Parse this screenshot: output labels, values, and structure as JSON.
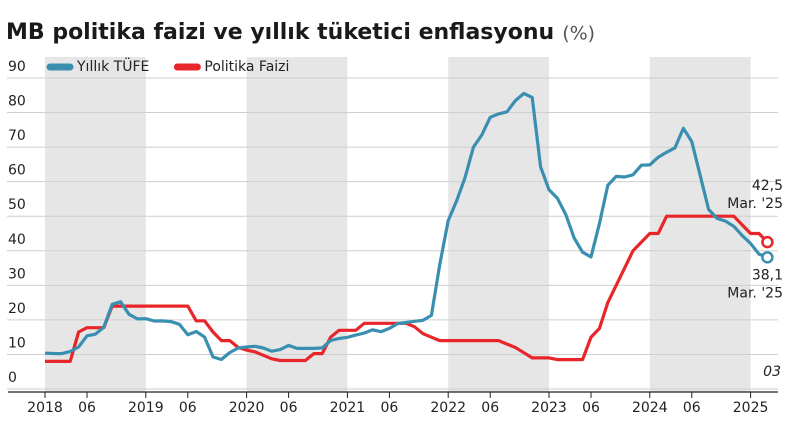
{
  "chart_data": {
    "type": "line",
    "title": "MB politika faizi ve yıllık tüketici enflasyonu",
    "unit": "(%)",
    "source_note": "03",
    "categories": [
      "2018",
      null,
      null,
      null,
      null,
      "06",
      null,
      null,
      null,
      null,
      null,
      null,
      "2019",
      null,
      null,
      null,
      null,
      "06",
      null,
      null,
      null,
      null,
      null,
      null,
      "2020",
      null,
      null,
      null,
      null,
      "06",
      null,
      null,
      null,
      null,
      null,
      null,
      "2021",
      null,
      null,
      null,
      null,
      "06",
      null,
      null,
      null,
      null,
      null,
      null,
      "2022",
      null,
      null,
      null,
      null,
      "06",
      null,
      null,
      null,
      null,
      null,
      null,
      "2023",
      null,
      null,
      null,
      null,
      "06",
      null,
      null,
      null,
      null,
      null,
      null,
      "2024",
      null,
      null,
      null,
      null,
      "06",
      null,
      null,
      null,
      null,
      null,
      null,
      "2025",
      null,
      null
    ],
    "series": [
      {
        "name": "Yıllık TÜFE",
        "color": "#3a8fb0",
        "end_note": "Mar. '25",
        "values": [
          10.35,
          10.26,
          10.23,
          10.85,
          12.15,
          15.39,
          15.85,
          17.9,
          24.52,
          25.24,
          21.62,
          20.3,
          20.35,
          19.67,
          19.71,
          19.5,
          18.71,
          15.72,
          16.65,
          15.01,
          9.26,
          8.55,
          10.56,
          11.84,
          12.15,
          12.37,
          11.86,
          10.94,
          11.39,
          12.62,
          11.76,
          11.77,
          11.75,
          11.89,
          14.03,
          14.6,
          14.97,
          15.61,
          16.19,
          17.14,
          16.59,
          17.53,
          18.95,
          19.25,
          19.58,
          19.89,
          21.31,
          36.08,
          48.69,
          54.44,
          61.14,
          69.97,
          73.5,
          78.62,
          79.6,
          80.21,
          83.45,
          85.51,
          84.39,
          64.27,
          57.68,
          55.18,
          50.51,
          43.68,
          39.59,
          38.21,
          47.83,
          58.94,
          61.53,
          61.36,
          61.98,
          64.77,
          64.86,
          67.07,
          68.5,
          69.8,
          75.45,
          71.6,
          61.78,
          51.97,
          49.38,
          48.58,
          47.09,
          44.38,
          42.12,
          39.05,
          38.1
        ],
        "value_labels": [
          null,
          null,
          null,
          null,
          null,
          null,
          null,
          null,
          null,
          null,
          null,
          null,
          null,
          null,
          null,
          null,
          null,
          null,
          null,
          null,
          null,
          null,
          null,
          null,
          null,
          null,
          null,
          null,
          null,
          null,
          null,
          null,
          null,
          null,
          null,
          null,
          null,
          null,
          null,
          null,
          null,
          null,
          null,
          null,
          null,
          null,
          null,
          null,
          null,
          null,
          null,
          null,
          null,
          null,
          null,
          null,
          null,
          null,
          null,
          null,
          null,
          null,
          null,
          null,
          null,
          null,
          null,
          null,
          null,
          null,
          null,
          null,
          null,
          null,
          null,
          null,
          null,
          null,
          null,
          null,
          null,
          null,
          null,
          null,
          null,
          null,
          "38,1"
        ]
      },
      {
        "name": "Politika Faizi",
        "color": "#e8262a",
        "end_note": "Mar. '25",
        "values": [
          8,
          8,
          8,
          8,
          16.5,
          17.75,
          17.75,
          17.75,
          24,
          24,
          24,
          24,
          24,
          24,
          24,
          24,
          24,
          24,
          19.75,
          19.75,
          16.5,
          14,
          14,
          12,
          11.25,
          10.75,
          9.75,
          8.75,
          8.25,
          8.25,
          8.25,
          8.25,
          10.25,
          10.25,
          15,
          17,
          17,
          17,
          19,
          19,
          19,
          19,
          19,
          19,
          18,
          16,
          15,
          14,
          14,
          14,
          14,
          14,
          14,
          14,
          14,
          13,
          12,
          10.5,
          9,
          9,
          9,
          8.5,
          8.5,
          8.5,
          8.5,
          15,
          17.5,
          25,
          30,
          35,
          40,
          42.5,
          45,
          45,
          50,
          50,
          50,
          50,
          50,
          50,
          50,
          50,
          50,
          47.5,
          45,
          45,
          42.5
        ],
        "value_labels": [
          null,
          null,
          null,
          null,
          null,
          null,
          null,
          null,
          null,
          null,
          null,
          null,
          null,
          null,
          null,
          null,
          null,
          null,
          null,
          null,
          null,
          null,
          null,
          null,
          null,
          null,
          null,
          null,
          null,
          null,
          null,
          null,
          null,
          null,
          null,
          null,
          null,
          null,
          null,
          null,
          null,
          null,
          null,
          null,
          null,
          null,
          null,
          null,
          null,
          null,
          null,
          null,
          null,
          null,
          null,
          null,
          null,
          null,
          null,
          null,
          null,
          null,
          null,
          null,
          null,
          null,
          null,
          null,
          null,
          null,
          null,
          null,
          null,
          null,
          null,
          null,
          null,
          null,
          null,
          null,
          null,
          null,
          null,
          null,
          null,
          null,
          "42,5"
        ]
      }
    ],
    "ylim": [
      0,
      90
    ],
    "yticks": [
      0,
      10,
      20,
      30,
      40,
      50,
      60,
      70,
      80,
      90
    ],
    "grid": true,
    "legend": "top-left"
  }
}
